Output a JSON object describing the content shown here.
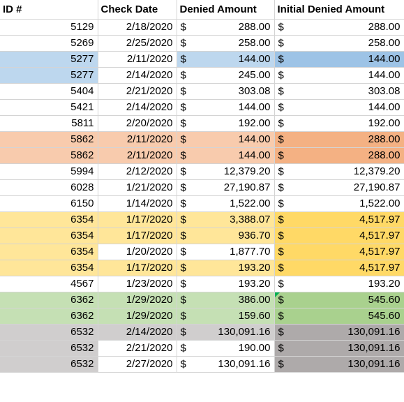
{
  "colors": {
    "blue_light": "#bdd7ee",
    "blue_dark": "#9dc3e6",
    "orange_light": "#f8cbad",
    "orange_dark": "#f4b183",
    "yellow_light": "#ffe699",
    "yellow_dark": "#ffd966",
    "green_light": "#c5e0b4",
    "green_dark": "#a9d18e",
    "gray_light": "#d0cece",
    "gray_dark": "#aeaaaa",
    "green_triangle": "#00b050"
  },
  "sheet": {
    "headers": [
      "ID #",
      "Check Date",
      "Denied Amount",
      "Initial Denied Amount"
    ],
    "rows": [
      {
        "id": "5129",
        "date": "2/18/2020",
        "denied": "288.00",
        "initial": "288.00",
        "bg_id": "",
        "bg_date": "",
        "bg_den": "",
        "bg_init": ""
      },
      {
        "id": "5269",
        "date": "2/25/2020",
        "denied": "258.00",
        "initial": "258.00",
        "bg_id": "",
        "bg_date": "",
        "bg_den": "",
        "bg_init": ""
      },
      {
        "id": "5277",
        "date": "2/11/2020",
        "denied": "144.00",
        "initial": "144.00",
        "bg_id": "blue_light",
        "bg_date": "",
        "bg_den": "blue_light",
        "bg_init": "blue_dark"
      },
      {
        "id": "5277",
        "date": "2/14/2020",
        "denied": "245.00",
        "initial": "144.00",
        "bg_id": "blue_light",
        "bg_date": "",
        "bg_den": "",
        "bg_init": ""
      },
      {
        "id": "5404",
        "date": "2/21/2020",
        "denied": "303.08",
        "initial": "303.08",
        "bg_id": "",
        "bg_date": "",
        "bg_den": "",
        "bg_init": ""
      },
      {
        "id": "5421",
        "date": "2/14/2020",
        "denied": "144.00",
        "initial": "144.00",
        "bg_id": "",
        "bg_date": "",
        "bg_den": "",
        "bg_init": ""
      },
      {
        "id": "5811",
        "date": "2/20/2020",
        "denied": "192.00",
        "initial": "192.00",
        "bg_id": "",
        "bg_date": "",
        "bg_den": "",
        "bg_init": ""
      },
      {
        "id": "5862",
        "date": "2/11/2020",
        "denied": "144.00",
        "initial": "288.00",
        "bg_id": "orange_light",
        "bg_date": "orange_light",
        "bg_den": "orange_light",
        "bg_init": "orange_dark"
      },
      {
        "id": "5862",
        "date": "2/11/2020",
        "denied": "144.00",
        "initial": "288.00",
        "bg_id": "orange_light",
        "bg_date": "orange_light",
        "bg_den": "orange_light",
        "bg_init": "orange_dark"
      },
      {
        "id": "5994",
        "date": "2/12/2020",
        "denied": "12,379.20",
        "initial": "12,379.20",
        "bg_id": "",
        "bg_date": "",
        "bg_den": "",
        "bg_init": ""
      },
      {
        "id": "6028",
        "date": "1/21/2020",
        "denied": "27,190.87",
        "initial": "27,190.87",
        "bg_id": "",
        "bg_date": "",
        "bg_den": "",
        "bg_init": ""
      },
      {
        "id": "6150",
        "date": "1/14/2020",
        "denied": "1,522.00",
        "initial": "1,522.00",
        "bg_id": "",
        "bg_date": "",
        "bg_den": "",
        "bg_init": ""
      },
      {
        "id": "6354",
        "date": "1/17/2020",
        "denied": "3,388.07",
        "initial": "4,517.97",
        "bg_id": "yellow_light",
        "bg_date": "yellow_light",
        "bg_den": "yellow_light",
        "bg_init": "yellow_dark"
      },
      {
        "id": "6354",
        "date": "1/17/2020",
        "denied": "936.70",
        "initial": "4,517.97",
        "bg_id": "yellow_light",
        "bg_date": "yellow_light",
        "bg_den": "yellow_light",
        "bg_init": "yellow_dark"
      },
      {
        "id": "6354",
        "date": "1/20/2020",
        "denied": "1,877.70",
        "initial": "4,517.97",
        "bg_id": "yellow_light",
        "bg_date": "",
        "bg_den": "",
        "bg_init": "yellow_dark"
      },
      {
        "id": "6354",
        "date": "1/17/2020",
        "denied": "193.20",
        "initial": "4,517.97",
        "bg_id": "yellow_light",
        "bg_date": "yellow_light",
        "bg_den": "yellow_light",
        "bg_init": "yellow_dark"
      },
      {
        "id": "4567",
        "date": "1/23/2020",
        "denied": "193.20",
        "initial": "193.20",
        "bg_id": "",
        "bg_date": "",
        "bg_den": "",
        "bg_init": ""
      },
      {
        "id": "6362",
        "date": "1/29/2020",
        "denied": "386.00",
        "initial": "545.60",
        "bg_id": "green_light",
        "bg_date": "green_light",
        "bg_den": "green_light",
        "bg_init": "green_dark",
        "flag_init": true
      },
      {
        "id": "6362",
        "date": "1/29/2020",
        "denied": "159.60",
        "initial": "545.60",
        "bg_id": "green_light",
        "bg_date": "green_light",
        "bg_den": "green_light",
        "bg_init": "green_dark"
      },
      {
        "id": "6532",
        "date": "2/14/2020",
        "denied": "130,091.16",
        "initial": "130,091.16",
        "bg_id": "gray_light",
        "bg_date": "gray_light",
        "bg_den": "gray_light",
        "bg_init": "gray_dark"
      },
      {
        "id": "6532",
        "date": "2/21/2020",
        "denied": "190.00",
        "initial": "130,091.16",
        "bg_id": "gray_light",
        "bg_date": "",
        "bg_den": "",
        "bg_init": "gray_dark"
      },
      {
        "id": "6532",
        "date": "2/27/2020",
        "denied": "130,091.16",
        "initial": "130,091.16",
        "bg_id": "gray_light",
        "bg_date": "",
        "bg_den": "",
        "bg_init": "gray_dark"
      }
    ],
    "currency_symbol": "$"
  }
}
